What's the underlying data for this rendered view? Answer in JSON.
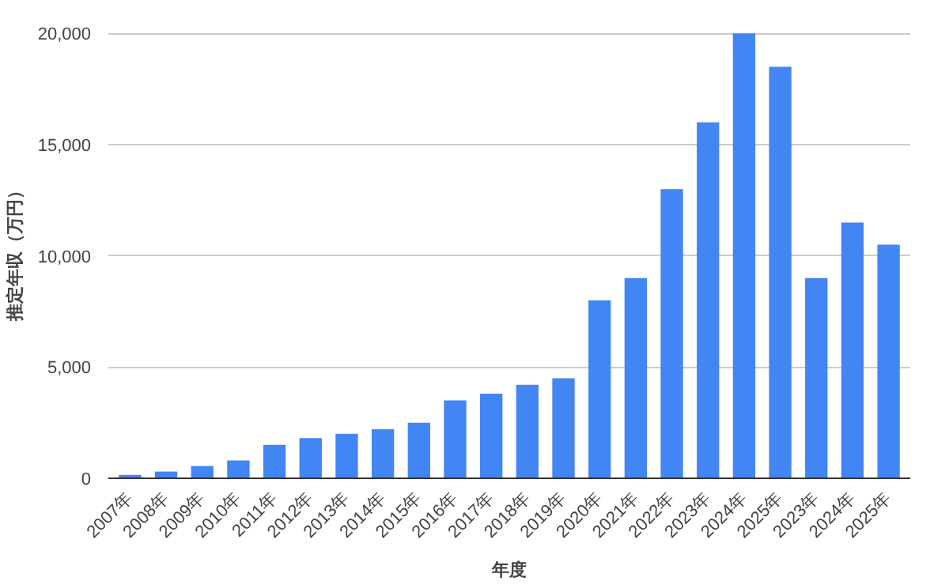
{
  "chart_data": {
    "type": "bar",
    "xlabel": "年度",
    "ylabel": "推定年収（万円）",
    "categories": [
      "2007年",
      "2008年",
      "2009年",
      "2010年",
      "2011年",
      "2012年",
      "2013年",
      "2014年",
      "2015年",
      "2016年",
      "2017年",
      "2018年",
      "2019年",
      "2020年",
      "2021年",
      "2022年",
      "2023年",
      "2024年",
      "2025年",
      "2023年",
      "2024年",
      "2025年"
    ],
    "values": [
      150,
      300,
      550,
      800,
      1500,
      1800,
      2000,
      2200,
      2500,
      3500,
      3800,
      4200,
      4500,
      8000,
      9000,
      13000,
      16000,
      20000,
      18500,
      9000,
      11500,
      10500
    ],
    "color": "#4285f4",
    "ylim": [
      0,
      20000
    ],
    "yticks": [
      {
        "value": 0,
        "label": "0"
      },
      {
        "value": 5000,
        "label": "5,000"
      },
      {
        "value": 10000,
        "label": "10,000"
      },
      {
        "value": 15000,
        "label": "15,000"
      },
      {
        "value": 20000,
        "label": "20,000"
      }
    ],
    "grid": "y"
  }
}
